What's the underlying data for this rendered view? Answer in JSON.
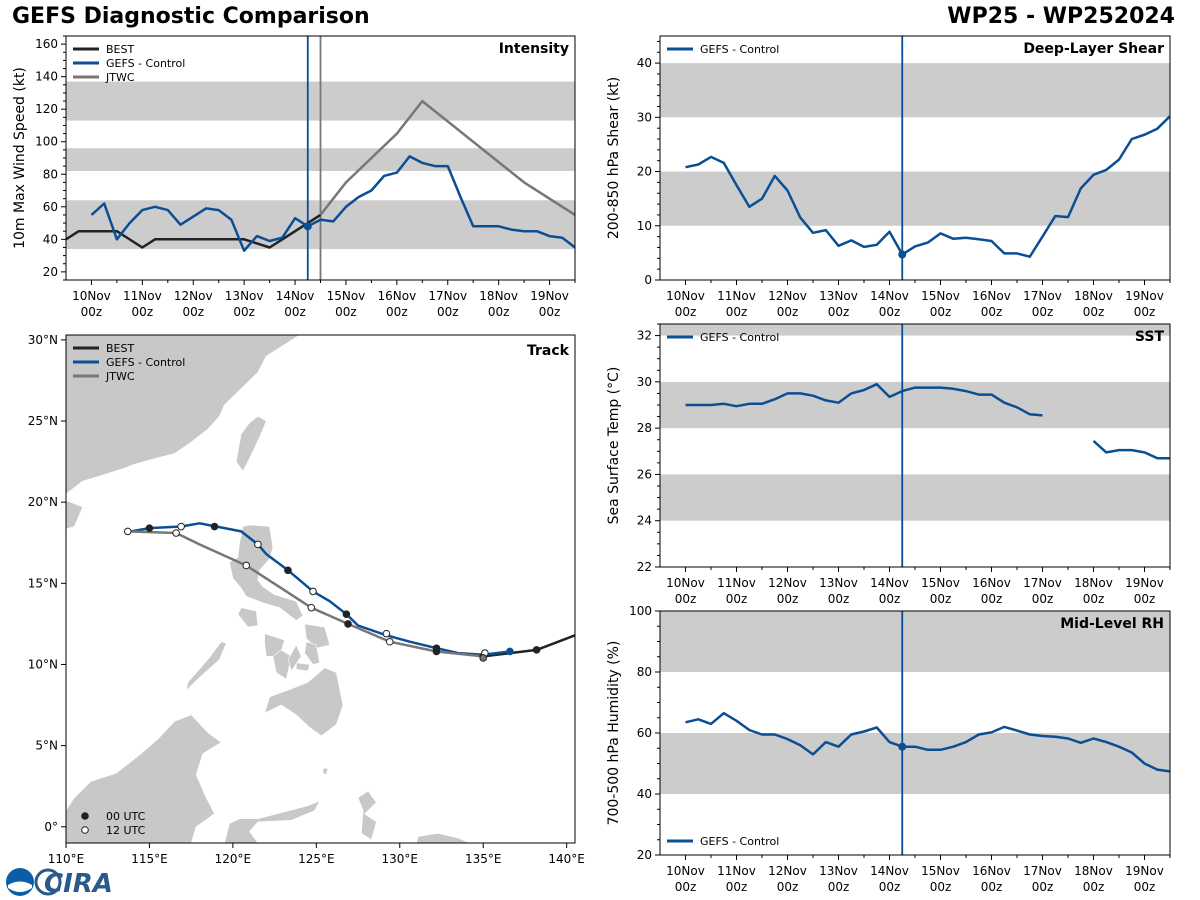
{
  "title_left": "GEFS Diagnostic Comparison",
  "title_right": "WP25 - WP252024",
  "logo_text": "CIRA",
  "colors": {
    "best": "#222222",
    "gefs": "#0a4f94",
    "jtwc": "#777777",
    "band": "#cccccc",
    "land": "#c8c8c8"
  },
  "time_ticks": [
    {
      "day": "10Nov",
      "hour": "00z"
    },
    {
      "day": "11Nov",
      "hour": "00z"
    },
    {
      "day": "12Nov",
      "hour": "00z"
    },
    {
      "day": "13Nov",
      "hour": "00z"
    },
    {
      "day": "14Nov",
      "hour": "00z"
    },
    {
      "day": "15Nov",
      "hour": "00z"
    },
    {
      "day": "16Nov",
      "hour": "00z"
    },
    {
      "day": "17Nov",
      "hour": "00z"
    },
    {
      "day": "18Nov",
      "hour": "00z"
    },
    {
      "day": "19Nov",
      "hour": "00z"
    }
  ],
  "chart_data": [
    {
      "type": "line",
      "id": "intensity",
      "title": "Intensity",
      "ylabel": "10m Max Wind Speed (kt)",
      "x_unit": "days since 10Nov 00z",
      "xlim": [
        -0.5,
        9.5
      ],
      "ylim": [
        15,
        165
      ],
      "yticks": [
        20,
        40,
        60,
        80,
        100,
        120,
        140,
        160
      ],
      "bands": [
        [
          34,
          64
        ],
        [
          82,
          96
        ],
        [
          113,
          137
        ]
      ],
      "vlines": [
        {
          "x": 4.25,
          "color": "gefs"
        },
        {
          "x": 4.5,
          "color": "jtwc"
        }
      ],
      "legend": [
        "BEST",
        "GEFS - Control",
        "JTWC"
      ],
      "series": [
        {
          "name": "BEST",
          "color": "best",
          "x": [
            -0.5,
            -0.25,
            0,
            0.25,
            0.5,
            1,
            1.25,
            2,
            3,
            3.5,
            4.0,
            4.25,
            4.5
          ],
          "y": [
            40,
            45,
            45,
            45,
            45,
            35,
            40,
            40,
            40,
            35,
            45,
            50,
            55
          ]
        },
        {
          "name": "GEFS - Control",
          "color": "gefs",
          "x": [
            0,
            0.25,
            0.5,
            0.75,
            1,
            1.25,
            1.5,
            1.75,
            2,
            2.25,
            2.5,
            2.75,
            3,
            3.25,
            3.5,
            3.75,
            4.0,
            4.25,
            4.5,
            4.75,
            5,
            5.25,
            5.5,
            5.75,
            6,
            6.25,
            6.5,
            6.75,
            7,
            7.25,
            7.5,
            7.75,
            8,
            8.25,
            8.5,
            8.75,
            9,
            9.25,
            9.5
          ],
          "y": [
            55,
            62,
            40,
            50,
            58,
            60,
            58,
            49,
            54,
            59,
            58,
            52,
            33,
            42,
            39,
            41,
            53,
            48,
            52,
            51,
            60,
            66,
            70,
            79,
            81,
            91,
            87,
            85,
            85,
            66,
            48,
            48,
            48,
            46,
            45,
            45,
            42,
            41,
            35
          ]
        },
        {
          "name": "JTWC",
          "color": "jtwc",
          "x": [
            4.5,
            5,
            6,
            6.5,
            8.5,
            9.5
          ],
          "y": [
            55,
            75,
            105,
            125,
            75,
            55
          ]
        }
      ],
      "markers": [
        {
          "series": "GEFS - Control",
          "x": 4.25,
          "y": 48
        }
      ]
    },
    {
      "type": "line",
      "id": "shear",
      "title": "Deep-Layer Shear",
      "ylabel": "200-850 hPa Shear (kt)",
      "xlim": [
        -0.5,
        9.5
      ],
      "ylim": [
        0,
        45
      ],
      "yticks": [
        0,
        10,
        20,
        30,
        40
      ],
      "bands": [
        [
          10,
          20
        ],
        [
          30,
          40
        ]
      ],
      "vlines": [
        {
          "x": 4.25,
          "color": "gefs"
        }
      ],
      "legend": [
        "GEFS - Control"
      ],
      "series": [
        {
          "name": "GEFS - Control",
          "color": "gefs",
          "x": [
            0,
            0.25,
            0.5,
            0.75,
            1,
            1.25,
            1.5,
            1.75,
            2,
            2.25,
            2.5,
            2.75,
            3,
            3.25,
            3.5,
            3.75,
            4.0,
            4.25,
            4.5,
            4.75,
            5,
            5.25,
            5.5,
            5.75,
            6,
            6.25,
            6.5,
            6.75,
            7,
            7.25,
            7.5,
            7.75,
            8,
            8.25,
            8.5,
            8.75,
            9,
            9.25,
            9.5
          ],
          "y": [
            20.8,
            21.3,
            22.7,
            21.6,
            17.5,
            13.5,
            15.0,
            19.2,
            16.5,
            11.5,
            8.7,
            9.2,
            6.3,
            7.3,
            6.1,
            6.5,
            8.9,
            4.7,
            6.2,
            6.9,
            8.6,
            7.6,
            7.8,
            7.5,
            7.2,
            4.9,
            4.9,
            4.3,
            8.0,
            11.8,
            11.6,
            16.9,
            19.4,
            20.3,
            22.2,
            26.0,
            26.8,
            27.9,
            30.2
          ]
        }
      ],
      "markers": [
        {
          "series": "GEFS - Control",
          "x": 4.25,
          "y": 4.7
        }
      ]
    },
    {
      "type": "line",
      "id": "sst",
      "title": "SST",
      "ylabel": "Sea Surface Temp (°C)",
      "xlim": [
        -0.5,
        9.5
      ],
      "ylim": [
        22,
        32.5
      ],
      "yticks": [
        22,
        24,
        26,
        28,
        30,
        32
      ],
      "bands": [
        [
          24,
          26
        ],
        [
          28,
          30
        ],
        [
          32,
          32.5
        ]
      ],
      "vlines": [
        {
          "x": 4.25,
          "color": "gefs"
        }
      ],
      "legend": [
        "GEFS - Control"
      ],
      "series": [
        {
          "name": "GEFS - Control",
          "color": "gefs",
          "x": [
            0,
            0.25,
            0.5,
            0.75,
            1,
            1.25,
            1.5,
            1.75,
            2,
            2.25,
            2.5,
            2.75,
            3,
            3.25,
            3.5,
            3.75,
            4.0,
            4.25,
            4.5,
            4.75,
            5,
            5.25,
            5.5,
            5.75,
            6,
            6.25,
            6.5,
            6.75,
            7
          ],
          "y": [
            29.0,
            29.0,
            29.0,
            29.05,
            28.95,
            29.05,
            29.05,
            29.25,
            29.5,
            29.5,
            29.4,
            29.2,
            29.1,
            29.5,
            29.65,
            29.9,
            29.35,
            29.6,
            29.75,
            29.75,
            29.75,
            29.7,
            29.6,
            29.45,
            29.45,
            29.1,
            28.9,
            28.6,
            28.55
          ]
        },
        {
          "name": "GEFS - Control",
          "color": "gefs",
          "x": [
            8,
            8.25,
            8.5,
            8.75,
            9,
            9.25,
            9.5
          ],
          "y": [
            27.45,
            26.95,
            27.05,
            27.05,
            26.95,
            26.7,
            26.7
          ]
        }
      ],
      "markers": []
    },
    {
      "type": "line",
      "id": "rh",
      "title": "Mid-Level RH",
      "ylabel": "700-500 hPa Humidity (%)",
      "xlim": [
        -0.5,
        9.5
      ],
      "ylim": [
        20,
        100
      ],
      "yticks": [
        20,
        40,
        60,
        80,
        100
      ],
      "bands": [
        [
          40,
          60
        ],
        [
          80,
          100
        ]
      ],
      "vlines": [
        {
          "x": 4.25,
          "color": "gefs"
        }
      ],
      "legend": [
        "GEFS - Control"
      ],
      "series": [
        {
          "name": "GEFS - Control",
          "color": "gefs",
          "x": [
            0,
            0.25,
            0.5,
            0.75,
            1,
            1.25,
            1.5,
            1.75,
            2,
            2.25,
            2.5,
            2.75,
            3,
            3.25,
            3.5,
            3.75,
            4.0,
            4.25,
            4.5,
            4.75,
            5,
            5.25,
            5.5,
            5.75,
            6,
            6.25,
            6.5,
            6.75,
            7,
            7.25,
            7.5,
            7.75,
            8,
            8.25,
            8.5,
            8.75,
            9,
            9.25,
            9.5
          ],
          "y": [
            63.5,
            64.5,
            63,
            66.5,
            64,
            61,
            59.5,
            59.5,
            58,
            56,
            53,
            57,
            55.5,
            59.5,
            60.5,
            61.8,
            57,
            55.5,
            55.5,
            54.5,
            54.5,
            55.5,
            57,
            59.5,
            60.2,
            62,
            60.8,
            59.5,
            59,
            58.8,
            58.2,
            56.8,
            58.2,
            57,
            55.5,
            53.6,
            50,
            48,
            47.4
          ]
        }
      ],
      "markers": [
        {
          "series": "GEFS - Control",
          "x": 4.25,
          "y": 55.5
        }
      ]
    },
    {
      "type": "scatter",
      "id": "track",
      "title": "Track",
      "xlim": [
        110,
        140.5
      ],
      "ylim": [
        -1,
        30.3
      ],
      "xticks": [
        110,
        115,
        120,
        125,
        130,
        135,
        140
      ],
      "xticklabels": [
        "110°E",
        "115°E",
        "120°E",
        "125°E",
        "130°E",
        "135°E",
        "140°E"
      ],
      "yticks": [
        0,
        5,
        10,
        15,
        20,
        25,
        30
      ],
      "yticklabels": [
        "0°",
        "5°N",
        "10°N",
        "15°N",
        "20°N",
        "25°N",
        "30°N"
      ],
      "legend": [
        "BEST",
        "GEFS - Control",
        "JTWC"
      ],
      "marker_legend": [
        "00 UTC",
        "12 UTC"
      ],
      "series": [
        {
          "name": "BEST",
          "color": "best",
          "lon": [
            135.0,
            138.2,
            139.5,
            140.5
          ],
          "lat": [
            10.5,
            10.9,
            11.4,
            11.8
          ]
        },
        {
          "name": "GEFS - Control",
          "color": "gefs",
          "lon": [
            136.6,
            135.0,
            133.5,
            132.2,
            130.6,
            129.2,
            127.5,
            126.8,
            125.8,
            124.8,
            124.0,
            123.3,
            122.0,
            121.5,
            120.5,
            119.0,
            118.0,
            116.9,
            115.0,
            113.9
          ],
          "lat": [
            10.8,
            10.6,
            10.7,
            11.0,
            11.4,
            11.8,
            12.4,
            13.1,
            13.9,
            14.5,
            15.2,
            15.8,
            16.8,
            17.4,
            18.2,
            18.5,
            18.7,
            18.5,
            18.4,
            18.2
          ]
        },
        {
          "name": "JTWC",
          "color": "jtwc",
          "lon": [
            135.0,
            132.2,
            129.4,
            126.9,
            124.7,
            122.9,
            120.8,
            118.0,
            116.6,
            113.7
          ],
          "lat": [
            10.5,
            10.8,
            11.4,
            12.5,
            13.5,
            14.7,
            16.1,
            17.4,
            18.1,
            18.2
          ]
        }
      ],
      "points": [
        {
          "lon": 135.0,
          "lat": 10.5,
          "fill": "#777777",
          "stroke": "#222222"
        },
        {
          "lon": 138.2,
          "lat": 10.9,
          "fill": "#222222",
          "stroke": "#222222"
        },
        {
          "lon": 136.6,
          "lat": 10.8,
          "fill": "#0a4f94",
          "stroke": "#0a4f94"
        },
        {
          "lon": 135.1,
          "lat": 10.7,
          "fill": "#ffffff",
          "stroke": "#222222"
        },
        {
          "lon": 132.2,
          "lat": 11.0,
          "fill": "#222222",
          "stroke": "#222222"
        },
        {
          "lon": 129.2,
          "lat": 11.9,
          "fill": "#ffffff",
          "stroke": "#222222"
        },
        {
          "lon": 126.8,
          "lat": 13.1,
          "fill": "#222222",
          "stroke": "#222222"
        },
        {
          "lon": 124.8,
          "lat": 14.5,
          "fill": "#ffffff",
          "stroke": "#222222"
        },
        {
          "lon": 123.3,
          "lat": 15.8,
          "fill": "#222222",
          "stroke": "#222222"
        },
        {
          "lon": 121.5,
          "lat": 17.4,
          "fill": "#ffffff",
          "stroke": "#222222"
        },
        {
          "lon": 118.9,
          "lat": 18.5,
          "fill": "#222222",
          "stroke": "#222222"
        },
        {
          "lon": 116.9,
          "lat": 18.5,
          "fill": "#ffffff",
          "stroke": "#222222"
        },
        {
          "lon": 115.0,
          "lat": 18.4,
          "fill": "#222222",
          "stroke": "#222222"
        },
        {
          "lon": 132.2,
          "lat": 10.8,
          "fill": "#222222",
          "stroke": "#222222"
        },
        {
          "lon": 129.4,
          "lat": 11.4,
          "fill": "#ffffff",
          "stroke": "#222222"
        },
        {
          "lon": 126.9,
          "lat": 12.5,
          "fill": "#222222",
          "stroke": "#222222"
        },
        {
          "lon": 124.7,
          "lat": 13.5,
          "fill": "#ffffff",
          "stroke": "#222222"
        },
        {
          "lon": 120.8,
          "lat": 16.1,
          "fill": "#ffffff",
          "stroke": "#222222"
        },
        {
          "lon": 116.6,
          "lat": 18.1,
          "fill": "#ffffff",
          "stroke": "#222222"
        },
        {
          "lon": 113.7,
          "lat": 18.2,
          "fill": "#ffffff",
          "stroke": "#222222"
        },
        {
          "lon": 135.0,
          "lat": 10.4,
          "fill": "#777777",
          "stroke": "#222222"
        }
      ]
    }
  ]
}
